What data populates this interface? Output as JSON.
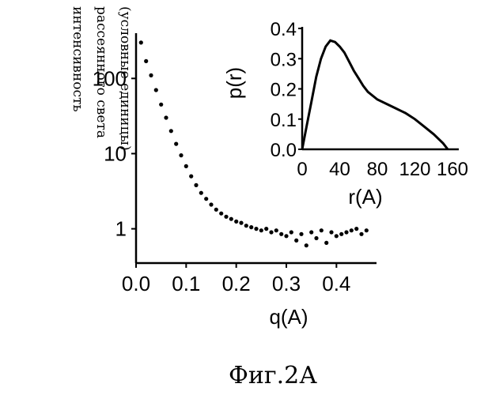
{
  "figure_caption": "Фиг.2А",
  "ylabel_lines": [
    "интенсивность",
    "рассеянного света",
    "(условные единицы)"
  ],
  "chart_data": [
    {
      "type": "scatter",
      "title": "",
      "xlabel": "q(A)",
      "ylabel": "интенсивность рассеянного света (условные единицы)",
      "xlim": [
        0.0,
        0.48
      ],
      "ylim": [
        0.35,
        400
      ],
      "y_scale": "log",
      "grid": false,
      "x_ticks": [
        {
          "value": 0.0,
          "label": "0.0"
        },
        {
          "value": 0.1,
          "label": "0.1"
        },
        {
          "value": 0.2,
          "label": "0.2"
        },
        {
          "value": 0.3,
          "label": "0.3"
        },
        {
          "value": 0.4,
          "label": "0.4"
        }
      ],
      "y_ticks": [
        {
          "value": 1,
          "label": "1"
        },
        {
          "value": 10,
          "label": "10"
        },
        {
          "value": 100,
          "label": "100"
        }
      ],
      "series": [
        {
          "x": [
            0.01,
            0.02,
            0.03,
            0.04,
            0.05,
            0.06,
            0.07,
            0.08,
            0.09,
            0.1,
            0.11,
            0.12,
            0.13,
            0.14,
            0.15,
            0.16,
            0.17,
            0.18,
            0.19,
            0.2,
            0.21,
            0.22,
            0.23,
            0.24,
            0.25,
            0.26,
            0.27,
            0.28,
            0.29,
            0.3,
            0.31,
            0.32,
            0.33,
            0.34,
            0.35,
            0.36,
            0.37,
            0.38,
            0.39,
            0.4,
            0.41,
            0.42,
            0.43,
            0.44,
            0.45,
            0.46
          ],
          "y": [
            300,
            170,
            110,
            70,
            45,
            30,
            20,
            13.5,
            9.5,
            6.8,
            5.0,
            3.8,
            3.0,
            2.5,
            2.1,
            1.8,
            1.6,
            1.45,
            1.35,
            1.25,
            1.2,
            1.1,
            1.05,
            1.0,
            0.95,
            1.0,
            0.9,
            0.95,
            0.85,
            0.8,
            0.9,
            0.7,
            0.85,
            0.6,
            0.9,
            0.75,
            0.95,
            0.65,
            0.9,
            0.8,
            0.85,
            0.9,
            0.95,
            1.0,
            0.85,
            0.95
          ]
        }
      ]
    },
    {
      "type": "line",
      "title": "",
      "xlabel": "r(A)",
      "ylabel": "p(r)",
      "xlim": [
        0,
        160
      ],
      "ylim": [
        0.0,
        0.4
      ],
      "grid": false,
      "x_ticks": [
        {
          "value": 0,
          "label": "0"
        },
        {
          "value": 40,
          "label": "40"
        },
        {
          "value": 80,
          "label": "80"
        },
        {
          "value": 120,
          "label": "120"
        },
        {
          "value": 160,
          "label": "160"
        }
      ],
      "y_ticks": [
        {
          "value": 0.0,
          "label": "0.0"
        },
        {
          "value": 0.1,
          "label": "0.1"
        },
        {
          "value": 0.2,
          "label": "0.2"
        },
        {
          "value": 0.3,
          "label": "0.3"
        },
        {
          "value": 0.4,
          "label": "0.4"
        }
      ],
      "series": [
        {
          "x": [
            0,
            5,
            10,
            15,
            20,
            25,
            30,
            35,
            40,
            45,
            50,
            55,
            60,
            65,
            70,
            80,
            90,
            100,
            110,
            120,
            130,
            140,
            150,
            155
          ],
          "y": [
            0.0,
            0.08,
            0.16,
            0.24,
            0.3,
            0.34,
            0.36,
            0.355,
            0.34,
            0.32,
            0.29,
            0.26,
            0.235,
            0.21,
            0.19,
            0.165,
            0.15,
            0.135,
            0.12,
            0.1,
            0.075,
            0.05,
            0.02,
            0.0
          ]
        }
      ]
    }
  ]
}
